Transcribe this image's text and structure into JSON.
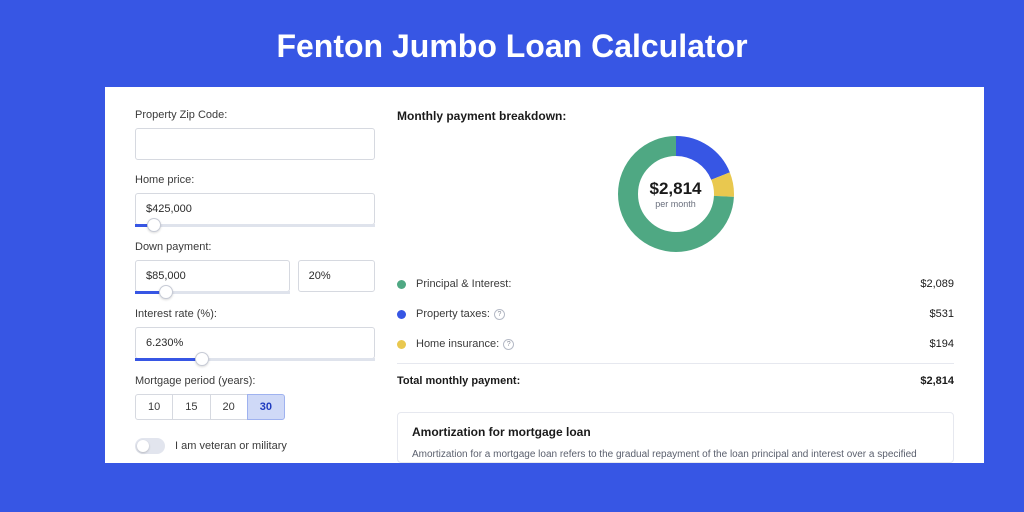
{
  "page": {
    "title": "Fenton Jumbo Loan Calculator",
    "bg_color": "#3756e4",
    "card_bg": "#ffffff"
  },
  "form": {
    "zip": {
      "label": "Property Zip Code:",
      "value": ""
    },
    "home_price": {
      "label": "Home price:",
      "value": "$425,000",
      "slider_percent": 8
    },
    "down_payment": {
      "label": "Down payment:",
      "value": "$85,000",
      "percent": "20%",
      "slider_percent": 20
    },
    "interest_rate": {
      "label": "Interest rate (%):",
      "value": "6.230%",
      "slider_percent": 28
    },
    "mortgage_period": {
      "label": "Mortgage period (years):",
      "options": [
        "10",
        "15",
        "20",
        "30"
      ],
      "selected": "30"
    },
    "veteran": {
      "label": "I am veteran or military",
      "checked": false
    }
  },
  "breakdown": {
    "title": "Monthly payment breakdown:",
    "donut": {
      "amount": "$2,814",
      "sub": "per month",
      "segments": [
        {
          "label": "Principal & Interest:",
          "value": "$2,089",
          "num": 2089,
          "color": "#4fa883",
          "info": false
        },
        {
          "label": "Property taxes:",
          "value": "$531",
          "num": 531,
          "color": "#3756e4",
          "info": true
        },
        {
          "label": "Home insurance:",
          "value": "$194",
          "num": 194,
          "color": "#e9c84f",
          "info": true
        }
      ],
      "track_bg": "#eef0f6",
      "stroke_width": 20
    },
    "total": {
      "label": "Total monthly payment:",
      "value": "$2,814"
    }
  },
  "amortization": {
    "title": "Amortization for mortgage loan",
    "text": "Amortization for a mortgage loan refers to the gradual repayment of the loan principal and interest over a specified"
  }
}
